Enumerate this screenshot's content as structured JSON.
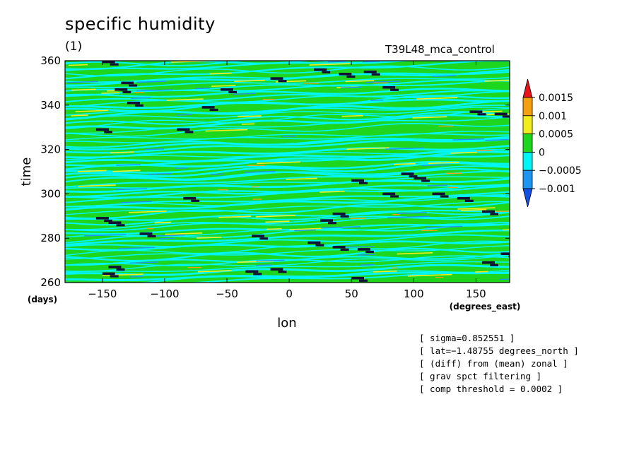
{
  "header": {
    "title": "specific humidity",
    "subtitle": "(1)",
    "run_label": "T39L48_mca_control"
  },
  "axes": {
    "x_title": "lon",
    "x_units": "(degrees_east)",
    "y_title": "time",
    "y_units": "(days)"
  },
  "colorbar": {
    "labels": [
      "0.0015",
      "0.001",
      "0.0005",
      "0",
      "−0.0005",
      "−0.001"
    ],
    "colors": [
      "#e8141c",
      "#f5a10f",
      "#f2ee1e",
      "#1ed61e",
      "#00f5f5",
      "#1e96f0",
      "#1450e6"
    ]
  },
  "notes": [
    "[ sigma=0.852551 ]",
    "[ lat=−1.48755 degrees_north ]",
    "[ (diff) from (mean) zonal ]",
    "[ grav spct filtering ]",
    "[ comp threshold = 0.0002 ]"
  ],
  "chart_data": {
    "type": "heatmap",
    "title": "specific humidity",
    "xlabel": "lon",
    "ylabel": "time",
    "xlim": [
      -180,
      177
    ],
    "ylim": [
      260,
      360
    ],
    "x_ticks": [
      -150,
      -100,
      -50,
      0,
      50,
      100,
      150
    ],
    "y_ticks": [
      260,
      280,
      300,
      320,
      340,
      360
    ],
    "levels": [
      -0.001,
      -0.0005,
      0,
      0.0005,
      0.001,
      0.0015
    ],
    "dominant_levels": [
      "0",
      "−0.0005"
    ],
    "threshold_markers": [
      {
        "lon": -145,
        "time": 359.5
      },
      {
        "lon": -130,
        "time": 350
      },
      {
        "lon": -135,
        "time": 347
      },
      {
        "lon": -125,
        "time": 341
      },
      {
        "lon": -150,
        "time": 329
      },
      {
        "lon": -85,
        "time": 329
      },
      {
        "lon": -65,
        "time": 339
      },
      {
        "lon": -50,
        "time": 347
      },
      {
        "lon": -10,
        "time": 352
      },
      {
        "lon": 25,
        "time": 356
      },
      {
        "lon": 45,
        "time": 354
      },
      {
        "lon": 65,
        "time": 355
      },
      {
        "lon": 80,
        "time": 348
      },
      {
        "lon": 150,
        "time": 337
      },
      {
        "lon": 170,
        "time": 336
      },
      {
        "lon": 95,
        "time": 309
      },
      {
        "lon": 105,
        "time": 307
      },
      {
        "lon": 55,
        "time": 306
      },
      {
        "lon": 80,
        "time": 300
      },
      {
        "lon": 120,
        "time": 300
      },
      {
        "lon": 140,
        "time": 298
      },
      {
        "lon": 160,
        "time": 292
      },
      {
        "lon": -80,
        "time": 298
      },
      {
        "lon": -150,
        "time": 289
      },
      {
        "lon": -140,
        "time": 287
      },
      {
        "lon": -115,
        "time": 282
      },
      {
        "lon": 40,
        "time": 291
      },
      {
        "lon": 30,
        "time": 288
      },
      {
        "lon": -25,
        "time": 281
      },
      {
        "lon": 20,
        "time": 278
      },
      {
        "lon": 40,
        "time": 276
      },
      {
        "lon": 60,
        "time": 275
      },
      {
        "lon": -140,
        "time": 267
      },
      {
        "lon": -145,
        "time": 264
      },
      {
        "lon": -30,
        "time": 265
      },
      {
        "lon": -10,
        "time": 266
      },
      {
        "lon": 55,
        "time": 262
      },
      {
        "lon": 160,
        "time": 269
      },
      {
        "lon": 175,
        "time": 273
      }
    ]
  }
}
